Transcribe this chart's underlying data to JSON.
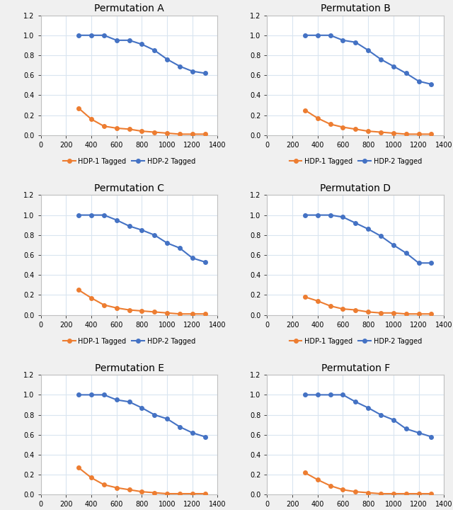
{
  "x": [
    300,
    400,
    500,
    600,
    700,
    800,
    900,
    1000,
    1100,
    1200,
    1300
  ],
  "permutations": [
    "Permutation A",
    "Permutation B",
    "Permutation C",
    "Permutation D",
    "Permutation E",
    "Permutation F"
  ],
  "hdp1": [
    [
      0.27,
      0.16,
      0.09,
      0.07,
      0.06,
      0.04,
      0.03,
      0.02,
      0.01,
      0.01,
      0.01
    ],
    [
      0.25,
      0.17,
      0.11,
      0.08,
      0.06,
      0.04,
      0.03,
      0.02,
      0.01,
      0.01,
      0.01
    ],
    [
      0.25,
      0.17,
      0.1,
      0.07,
      0.05,
      0.04,
      0.03,
      0.02,
      0.01,
      0.01,
      0.01
    ],
    [
      0.18,
      0.14,
      0.09,
      0.06,
      0.05,
      0.03,
      0.02,
      0.02,
      0.01,
      0.01,
      0.01
    ],
    [
      0.27,
      0.17,
      0.1,
      0.07,
      0.05,
      0.03,
      0.02,
      0.01,
      0.01,
      0.01,
      0.01
    ],
    [
      0.22,
      0.15,
      0.09,
      0.05,
      0.03,
      0.02,
      0.01,
      0.01,
      0.01,
      0.01,
      0.01
    ]
  ],
  "hdp2": [
    [
      1.0,
      1.0,
      1.0,
      0.95,
      0.95,
      0.91,
      0.85,
      0.76,
      0.69,
      0.64,
      0.62
    ],
    [
      1.0,
      1.0,
      1.0,
      0.95,
      0.93,
      0.85,
      0.76,
      0.69,
      0.62,
      0.54,
      0.51
    ],
    [
      1.0,
      1.0,
      1.0,
      0.95,
      0.89,
      0.85,
      0.8,
      0.72,
      0.67,
      0.57,
      0.53
    ],
    [
      1.0,
      1.0,
      1.0,
      0.98,
      0.92,
      0.86,
      0.79,
      0.7,
      0.62,
      0.52,
      0.52
    ],
    [
      1.0,
      1.0,
      1.0,
      0.95,
      0.93,
      0.87,
      0.8,
      0.76,
      0.68,
      0.62,
      0.58
    ],
    [
      1.0,
      1.0,
      1.0,
      1.0,
      0.93,
      0.87,
      0.8,
      0.75,
      0.66,
      0.62,
      0.58
    ]
  ],
  "color_hdp1": "#ED7D31",
  "color_hdp2": "#4472C4",
  "label_hdp1": "HDP-1 Tagged",
  "label_hdp2": "HDP-2 Tagged",
  "ylim": [
    0,
    1.2
  ],
  "xlim": [
    0,
    1400
  ],
  "xticks": [
    0,
    200,
    400,
    600,
    800,
    1000,
    1200,
    1400
  ],
  "yticks": [
    0,
    0.2,
    0.4,
    0.6,
    0.8,
    1.0,
    1.2
  ],
  "bg_color": "#f0f0f0",
  "plot_bg": "#ffffff",
  "grid_color": "#d9e5f0",
  "title_fontsize": 10,
  "tick_fontsize": 7,
  "legend_fontsize": 7,
  "marker": "o",
  "markersize": 4,
  "linewidth": 1.5
}
